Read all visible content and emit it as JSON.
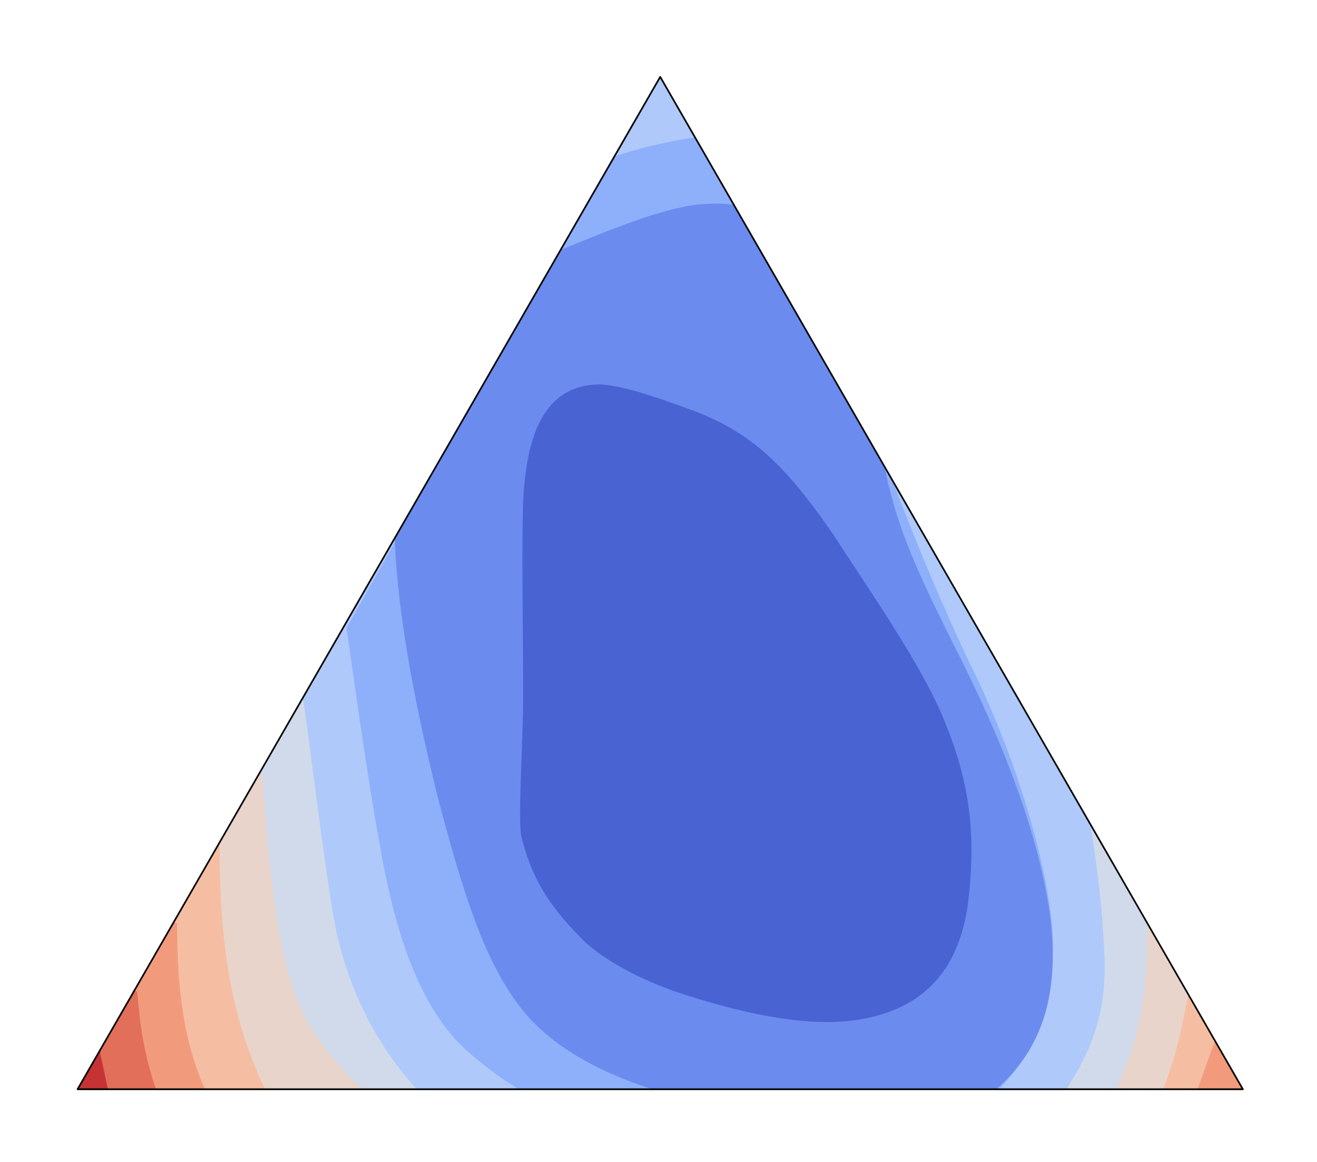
{
  "chart_data": {
    "type": "ternary-contour",
    "title": "",
    "axis_labels": [],
    "tick_labels": [],
    "legend": null,
    "grid": false,
    "colormap": "coolwarm",
    "levels": [
      {
        "name": "level-1",
        "color": "#4a63d3"
      },
      {
        "name": "level-2",
        "color": "#6b8cee"
      },
      {
        "name": "level-3",
        "color": "#8eb0fb"
      },
      {
        "name": "level-4",
        "color": "#afc9fb"
      },
      {
        "name": "level-5",
        "color": "#d0daea"
      },
      {
        "name": "level-6",
        "color": "#e9d4cb"
      },
      {
        "name": "level-7",
        "color": "#f5bea3"
      },
      {
        "name": "level-8",
        "color": "#f29b7c"
      },
      {
        "name": "level-9",
        "color": "#e16f59"
      },
      {
        "name": "level-10",
        "color": "#c53334"
      }
    ],
    "outline_color": "#000000"
  }
}
